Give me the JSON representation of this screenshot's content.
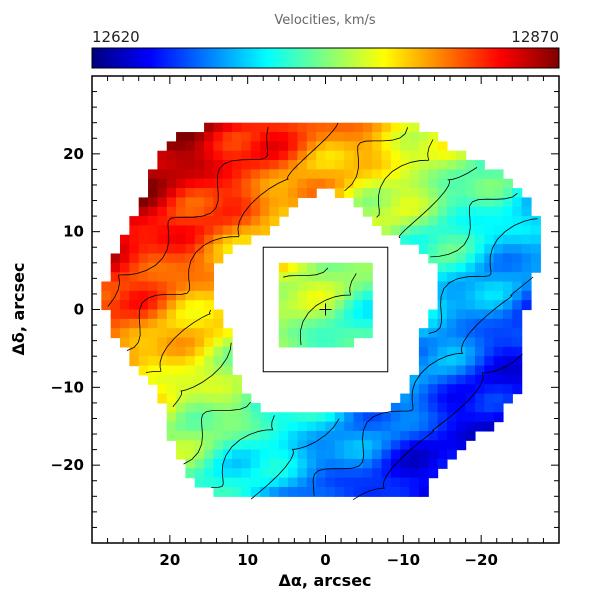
{
  "chart_data": {
    "type": "heatmap",
    "title": "Velocities, km/s",
    "colorbar": {
      "min_label": "12620",
      "max_label": "12870",
      "min": 12620,
      "max": 12870,
      "colormap": "jet"
    },
    "xlabel": "Δα, arcsec",
    "ylabel": "Δδ, arcsec",
    "xlim": [
      30,
      -30
    ],
    "ylim": [
      -30,
      30
    ],
    "x_ticks": [
      20,
      10,
      0,
      -10,
      -20
    ],
    "x_tick_labels": [
      "20",
      "10",
      "0",
      "−10",
      "−20"
    ],
    "y_ticks": [
      20,
      10,
      0,
      -10,
      -20
    ],
    "y_tick_labels": [
      "20",
      "10",
      "0",
      "−10",
      "−20"
    ],
    "ring": {
      "inner_radius": 14,
      "outer_radius": 27,
      "gradient_axis": "NE-high to SW-low",
      "v_mean": 12745,
      "v_amplitude": 110
    },
    "inset_box": {
      "x": [
        8,
        -8
      ],
      "y": [
        8,
        -8
      ]
    },
    "center_marker": {
      "x": 0,
      "y": 0
    },
    "grid": false,
    "legend": "none"
  }
}
